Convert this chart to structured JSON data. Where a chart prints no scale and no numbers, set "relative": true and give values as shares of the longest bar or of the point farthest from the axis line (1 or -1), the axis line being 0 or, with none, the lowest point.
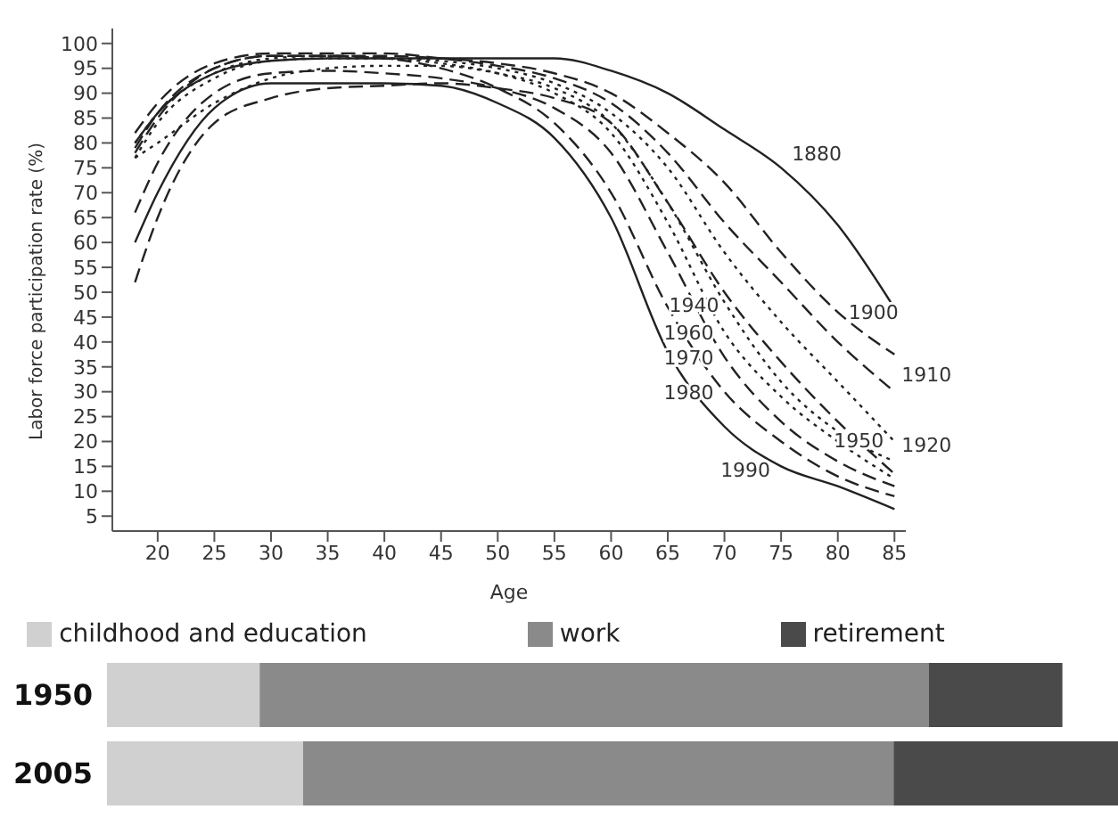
{
  "chart_data": [
    {
      "type": "line",
      "xlabel": "Age",
      "ylabel": "Labor force participation rate (%)",
      "x": [
        18,
        20,
        25,
        30,
        35,
        40,
        45,
        50,
        55,
        60,
        65,
        70,
        75,
        80,
        85
      ],
      "xlim": [
        16,
        86
      ],
      "ylim": [
        2,
        103
      ],
      "xticks": [
        20,
        25,
        30,
        35,
        40,
        45,
        50,
        55,
        60,
        65,
        70,
        75,
        80,
        85
      ],
      "yticks": [
        5,
        10,
        15,
        20,
        25,
        30,
        35,
        40,
        45,
        50,
        55,
        60,
        65,
        70,
        75,
        80,
        85,
        90,
        95,
        100
      ],
      "grid": false,
      "legend": false,
      "marker": "none",
      "series": [
        {
          "name": "1880",
          "color": "#222222",
          "line_style": "solid",
          "values": [
            80,
            86,
            94,
            96.5,
            97,
            97,
            97,
            97,
            97,
            94.5,
            90,
            82.7,
            75,
            63.5,
            46.8
          ]
        },
        {
          "name": "1900",
          "color": "#222222",
          "line_style": "dashed",
          "values": [
            78,
            85,
            95,
            97.5,
            97.5,
            97.5,
            97,
            96,
            94,
            90,
            82,
            72,
            58,
            46,
            37.5
          ]
        },
        {
          "name": "1910",
          "color": "#222222",
          "line_style": "dashed",
          "values": [
            82,
            88,
            96,
            98,
            98,
            98,
            97,
            95.5,
            93,
            88,
            78,
            64,
            52,
            40,
            30
          ]
        },
        {
          "name": "1920",
          "color": "#222222",
          "line_style": "dotted",
          "values": [
            77,
            84,
            93,
            96.5,
            97,
            97,
            96.5,
            95,
            92,
            86,
            75,
            58,
            44,
            32,
            20
          ]
        },
        {
          "name": "1940",
          "color": "#222222",
          "line_style": "dashed",
          "values": [
            52,
            65,
            84,
            89,
            91,
            91.5,
            92,
            91,
            89,
            84,
            68,
            50,
            36,
            24,
            13.5
          ]
        },
        {
          "name": "1950",
          "color": "#222222",
          "line_style": "dotted",
          "values": [
            77,
            80,
            88,
            93,
            95,
            95.5,
            95.5,
            94,
            91,
            84,
            68,
            48,
            32,
            22,
            16
          ]
        },
        {
          "name": "1960",
          "color": "#222222",
          "line_style": "dotted",
          "values": [
            80,
            86,
            94,
            97,
            97.5,
            97,
            96,
            94,
            90,
            82,
            64,
            42,
            29,
            20,
            12.5
          ]
        },
        {
          "name": "1970",
          "color": "#222222",
          "line_style": "dashed",
          "values": [
            66,
            76,
            90,
            94,
            94.5,
            94,
            93,
            91,
            87,
            78,
            58,
            37,
            24,
            16,
            11
          ]
        },
        {
          "name": "1980",
          "color": "#222222",
          "line_style": "dashed",
          "values": [
            79,
            86,
            95,
            97.5,
            97.5,
            97,
            95,
            91,
            84,
            70,
            47,
            30,
            20,
            13,
            9
          ]
        },
        {
          "name": "1990",
          "color": "#222222",
          "line_style": "solid",
          "values": [
            60,
            70,
            87,
            92,
            92,
            92,
            91.5,
            88,
            81,
            65,
            38,
            23,
            15,
            11,
            6.4
          ]
        }
      ]
    },
    {
      "type": "bar",
      "orientation": "horizontal",
      "stacked": true,
      "relative": true,
      "legend": "top",
      "categories": [
        "1950",
        "2005"
      ],
      "series": [
        {
          "name": "childhood and education",
          "color": "#d0d0d0",
          "values": [
            0.151,
            0.194
          ]
        },
        {
          "name": "work",
          "color": "#8a8a8a",
          "values": [
            0.662,
            0.584
          ]
        },
        {
          "name": "retirement",
          "color": "#4a4a4a",
          "values": [
            0.132,
            0.222
          ]
        }
      ]
    }
  ]
}
